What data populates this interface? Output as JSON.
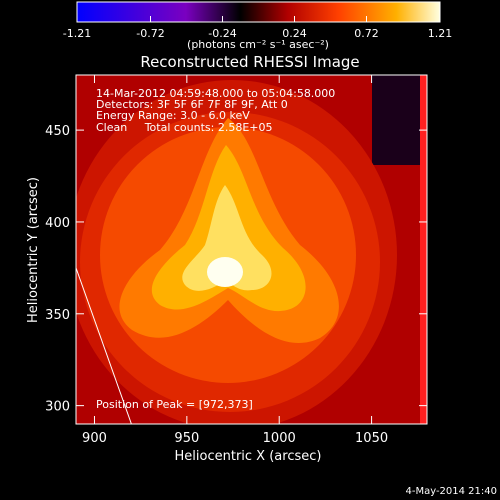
{
  "chart_data": {
    "type": "heatmap",
    "title": "Reconstructed RHESSI Image",
    "xlabel": "Heliocentric X (arcsec)",
    "ylabel": "Heliocentric Y (arcsec)",
    "xlim": [
      890,
      1080
    ],
    "ylim": [
      290,
      480
    ],
    "x_ticks": [
      900,
      950,
      1000,
      1050
    ],
    "y_ticks": [
      300,
      350,
      400,
      450
    ],
    "x_tick_labels": [
      "900",
      "950",
      "1000",
      "1050"
    ],
    "y_tick_labels": [
      "300",
      "350",
      "400",
      "450"
    ],
    "colorbar": {
      "min": -1.21,
      "max": 1.21,
      "tick_values": [
        -1.21,
        -0.72,
        -0.24,
        0.24,
        0.72,
        1.21
      ],
      "tick_labels": [
        "-1.21",
        "-0.72",
        "-0.24",
        "0.24",
        "0.72",
        "1.21"
      ],
      "units_label": "(photons cm⁻² s⁻¹ asec⁻²)",
      "colors": [
        "#0000ff",
        "#7a00c0",
        "#000000",
        "#b00000",
        "#ff4000",
        "#ffb000",
        "#ffffe0"
      ]
    },
    "annotations": [
      "14-Mar-2012 04:59:48.000 to 05:04:58.000",
      "Detectors: 3F 5F 6F 7F 8F 9F, Att 0",
      "Energy Range: 3.0 - 6.0 keV",
      "Clean     Total counts: 2.58E+05"
    ],
    "peak_label": "Position of Peak = [972,373]",
    "peak": [
      972,
      373
    ],
    "limb_line": [
      [
        890,
        375
      ],
      [
        920,
        290
      ]
    ],
    "timestamp": "4-May-2014 21:40"
  }
}
